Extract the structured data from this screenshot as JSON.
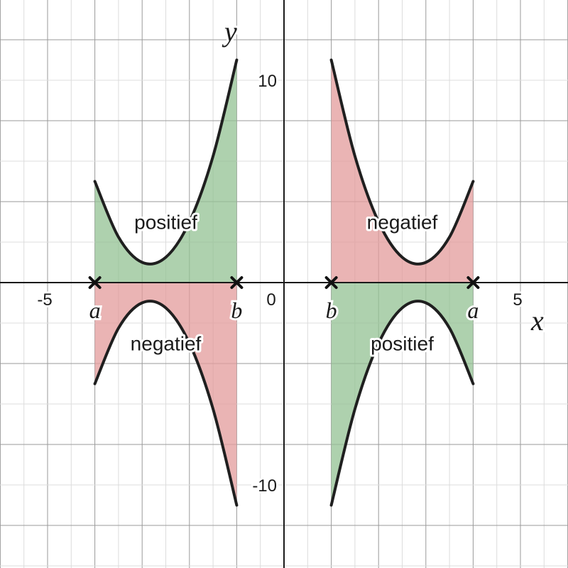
{
  "chart_data": {
    "type": "area",
    "xlim": [
      -6,
      6
    ],
    "ylim": [
      -14,
      14
    ],
    "grid": true,
    "axis_labels": {
      "x": "x",
      "y": "y"
    },
    "ticks": {
      "x": [
        {
          "value": -5,
          "label": "-5"
        },
        {
          "value": 0,
          "label": "0"
        },
        {
          "value": 5,
          "label": "5"
        }
      ],
      "y": [
        {
          "value": 10,
          "label": "10"
        },
        {
          "value": -10,
          "label": "-10"
        }
      ]
    },
    "colors": {
      "positive": "#93c293",
      "negative": "#e39b9b"
    },
    "regions": [
      {
        "name": "left-upper",
        "sign": "positive",
        "label": "positief",
        "x": [
          -4,
          -3.5,
          -3,
          -2.5,
          -2,
          -1.5,
          -1
        ],
        "y": [
          5.0,
          2.25,
          1.0,
          1.25,
          3.0,
          6.25,
          11.0
        ]
      },
      {
        "name": "left-lower",
        "sign": "negative",
        "label": "negatief",
        "x": [
          -4,
          -3.5,
          -3,
          -2.5,
          -2,
          -1.5,
          -1
        ],
        "y": [
          -5.0,
          -2.25,
          -1.0,
          -1.25,
          -3.0,
          -6.25,
          -11.0
        ]
      },
      {
        "name": "right-upper",
        "sign": "negative",
        "label": "negatief",
        "x": [
          1,
          1.5,
          2,
          2.5,
          3,
          3.5,
          4
        ],
        "y": [
          11.0,
          6.25,
          3.0,
          1.25,
          1.0,
          2.25,
          5.0
        ]
      },
      {
        "name": "right-lower",
        "sign": "positive",
        "label": "positief",
        "x": [
          1,
          1.5,
          2,
          2.5,
          3,
          3.5,
          4
        ],
        "y": [
          -11.0,
          -6.25,
          -3.0,
          -1.25,
          -1.0,
          -2.25,
          -5.0
        ]
      }
    ],
    "bounds": [
      {
        "x": -4,
        "label": "a"
      },
      {
        "x": -1,
        "label": "b"
      },
      {
        "x": 1,
        "label": "b"
      },
      {
        "x": 4,
        "label": "a"
      }
    ]
  }
}
